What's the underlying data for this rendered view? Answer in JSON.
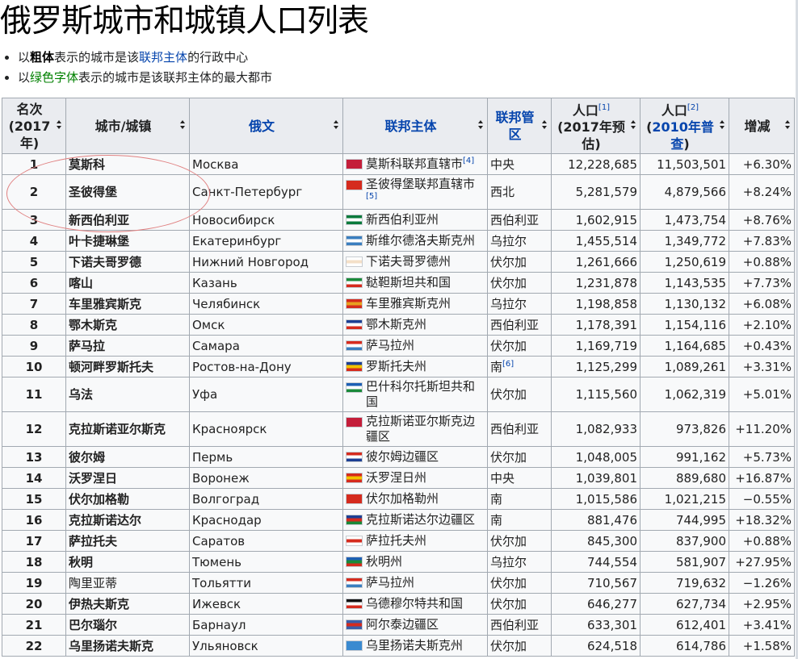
{
  "title": "俄罗斯城市和城镇人口列表",
  "notes": [
    {
      "pre": "以",
      "bold": "粗体",
      "mid": "表示的城市是该",
      "link": "联邦主体",
      "post": "的行政中心"
    },
    {
      "pre": "以",
      "green": "绿色字体",
      "post": "表示的城市是该联邦主体的最大都市"
    }
  ],
  "headers": {
    "rank": "名次\n(2017\n年)",
    "city": "城市/城镇",
    "russian": "俄文",
    "subject": "联邦主体",
    "district": "联邦管\n区",
    "pop2017_main": "人口",
    "pop2017_sup": "[1]",
    "pop2017_sub": "(2017年预\n估)",
    "pop2010_main": "人口",
    "pop2010_sup": "[2]",
    "pop2010_link": "2010年普\n查",
    "change": "增减"
  },
  "rows": [
    {
      "rank": "1",
      "city": "莫斯科",
      "russian": "Москва",
      "subject": "莫斯科联邦直辖市",
      "subject_sup": "[4]",
      "district": "中央",
      "district_link": true,
      "pop2017": "12,228,685",
      "pop2010": "11,503,501",
      "change": "+6.30%",
      "flag": [
        "#c41e3a",
        "#c41e3a",
        "#c41e3a"
      ]
    },
    {
      "rank": "2",
      "city": "圣彼得堡",
      "russian": "Санкт-Петербург",
      "subject": "圣彼得堡联邦直辖市",
      "subject_sup": "[5]",
      "district": "西北",
      "district_link": false,
      "pop2017": "5,281,579",
      "pop2010": "4,879,566",
      "change": "+8.24%",
      "flag": [
        "#d52b1e",
        "#d52b1e",
        "#d52b1e"
      ]
    },
    {
      "rank": "3",
      "city": "新西伯利亚",
      "russian": "Новосибирск",
      "subject": "新西伯利亚州",
      "subject_sup": "",
      "district": "西伯利亚",
      "district_link": true,
      "pop2017": "1,602,915",
      "pop2010": "1,473,754",
      "change": "+8.76%",
      "flag": [
        "#0a7a3c",
        "#ffffff",
        "#0a7a3c"
      ]
    },
    {
      "rank": "4",
      "city": "叶卡捷琳堡",
      "russian": "Екатеринбург",
      "subject": "斯维尔德洛夫斯克州",
      "subject_sup": "",
      "district": "乌拉尔",
      "district_link": true,
      "pop2017": "1,455,514",
      "pop2010": "1,349,772",
      "change": "+7.83%",
      "flag": [
        "#3a7ebf",
        "#ffffff",
        "#3a7ebf"
      ]
    },
    {
      "rank": "5",
      "city": "下诺夫哥罗德",
      "russian": "Нижний Новгород",
      "subject": "下诺夫哥罗德州",
      "subject_sup": "",
      "district": "伏尔加",
      "district_link": true,
      "pop2017": "1,261,666",
      "pop2010": "1,250,619",
      "change": "+0.88%",
      "flag": [
        "#ffffff",
        "#f4e0c8",
        "#ffffff"
      ]
    },
    {
      "rank": "6",
      "city": "喀山",
      "russian": "Казань",
      "subject": "鞑靼斯坦共和国",
      "subject_sup": "",
      "district": "伏尔加",
      "district_link": false,
      "pop2017": "1,231,878",
      "pop2010": "1,143,535",
      "change": "+7.73%",
      "flag": [
        "#1a8a3a",
        "#ffffff",
        "#d52b1e"
      ]
    },
    {
      "rank": "7",
      "city": "车里雅宾斯克",
      "russian": "Челябинск",
      "subject": "车里雅宾斯克州",
      "subject_sup": "",
      "district": "乌拉尔",
      "district_link": false,
      "pop2017": "1,198,858",
      "pop2010": "1,130,132",
      "change": "+6.08%",
      "flag": [
        "#d52b1e",
        "#e8a020",
        "#d52b1e"
      ]
    },
    {
      "rank": "8",
      "city": "鄂木斯克",
      "russian": "Омск",
      "subject": "鄂木斯克州",
      "subject_sup": "",
      "district": "西伯利亚",
      "district_link": false,
      "pop2017": "1,178,391",
      "pop2010": "1,154,116",
      "change": "+2.10%",
      "flag": [
        "#1c3f94",
        "#ffffff",
        "#d52b1e"
      ]
    },
    {
      "rank": "9",
      "city": "萨马拉",
      "russian": "Самара",
      "subject": "萨马拉州",
      "subject_sup": "",
      "district": "伏尔加",
      "district_link": false,
      "pop2017": "1,169,719",
      "pop2010": "1,164,685",
      "change": "+0.43%",
      "flag": [
        "#d52b1e",
        "#ffffff",
        "#3a7ebf"
      ]
    },
    {
      "rank": "10",
      "city": "顿河畔罗斯托夫",
      "russian": "Ростов-на-Дону",
      "subject": "罗斯托夫州",
      "subject_sup": "",
      "district": "南",
      "district_sup": "[6]",
      "district_link": true,
      "pop2017": "1,125,299",
      "pop2010": "1,089,261",
      "change": "+3.31%",
      "flag": [
        "#1c3f94",
        "#f2c200",
        "#d52b1e"
      ]
    },
    {
      "rank": "11",
      "city": "乌法",
      "russian": "Уфа",
      "subject": "巴什科尔托斯坦共和国",
      "subject_sup": "",
      "district": "伏尔加",
      "district_link": false,
      "pop2017": "1,115,560",
      "pop2010": "1,062,319",
      "change": "+5.01%",
      "flag": [
        "#1c5fb4",
        "#ffffff",
        "#1a8a3a"
      ]
    },
    {
      "rank": "12",
      "city": "克拉斯诺亚尔斯克",
      "russian": "Красноярск",
      "subject": "克拉斯诺亚尔斯克边疆区",
      "subject_sup": "",
      "district": "西伯利亚",
      "district_link": false,
      "pop2017": "1,082,933",
      "pop2010": "973,826",
      "change": "+11.20%",
      "flag": [
        "#c41e3a",
        "#c41e3a",
        "#c41e3a"
      ]
    },
    {
      "rank": "13",
      "city": "彼尔姆",
      "russian": "Пермь",
      "subject": "彼尔姆边疆区",
      "subject_sup": "",
      "district": "伏尔加",
      "district_link": false,
      "pop2017": "1,048,005",
      "pop2010": "991,162",
      "change": "+5.73%",
      "flag": [
        "#d52b1e",
        "#ffffff",
        "#1c3f94"
      ]
    },
    {
      "rank": "14",
      "city": "沃罗涅日",
      "russian": "Воронеж",
      "subject": "沃罗涅日州",
      "subject_sup": "",
      "district": "中央",
      "district_link": false,
      "pop2017": "1,039,801",
      "pop2010": "889,680",
      "change": "+16.87%",
      "flag": [
        "#d52b1e",
        "#f2c200",
        "#d52b1e"
      ]
    },
    {
      "rank": "15",
      "city": "伏尔加格勒",
      "russian": "Волгоград",
      "subject": "伏尔加格勒州",
      "subject_sup": "",
      "district": "南",
      "district_link": false,
      "pop2017": "1,015,586",
      "pop2010": "1,021,215",
      "change": "−0.55%",
      "flag": [
        "#d52b1e",
        "#d52b1e",
        "#d52b1e"
      ]
    },
    {
      "rank": "16",
      "city": "克拉斯诺达尔",
      "russian": "Краснодар",
      "subject": "克拉斯诺达尔边疆区",
      "subject_sup": "",
      "district": "南",
      "district_link": false,
      "pop2017": "881,476",
      "pop2010": "744,995",
      "change": "+18.32%",
      "flag": [
        "#1c3f94",
        "#d52b1e",
        "#1a8a3a"
      ]
    },
    {
      "rank": "17",
      "city": "萨拉托夫",
      "russian": "Саратов",
      "subject": "萨拉托夫州",
      "subject_sup": "",
      "district": "伏尔加",
      "district_link": false,
      "pop2017": "845,300",
      "pop2010": "837,900",
      "change": "+0.88%",
      "flag": [
        "#ffffff",
        "#d52b1e",
        "#ffffff"
      ]
    },
    {
      "rank": "18",
      "city": "秋明",
      "russian": "Тюмень",
      "subject": "秋明州",
      "subject_sup": "",
      "district": "乌拉尔",
      "district_link": false,
      "pop2017": "744,554",
      "pop2010": "581,907",
      "change": "+27.95%",
      "flag": [
        "#1c5fb4",
        "#1a8a3a",
        "#d52b1e"
      ]
    },
    {
      "rank": "19",
      "city": "陶里亚蒂",
      "russian": "Тольятти",
      "subject": "萨马拉州",
      "subject_sup": "",
      "district": "伏尔加",
      "district_link": false,
      "pop2017": "710,567",
      "pop2010": "719,632",
      "change": "−1.26%",
      "flag": [
        "#d52b1e",
        "#ffffff",
        "#3a7ebf"
      ],
      "plain": true
    },
    {
      "rank": "20",
      "city": "伊热夫斯克",
      "russian": "Ижевск",
      "subject": "乌德穆尔特共和国",
      "subject_sup": "",
      "district": "伏尔加",
      "district_link": false,
      "pop2017": "646,277",
      "pop2010": "627,734",
      "change": "+2.95%",
      "flag": [
        "#111111",
        "#ffffff",
        "#d52b1e"
      ]
    },
    {
      "rank": "21",
      "city": "巴尔瑙尔",
      "russian": "Барнаул",
      "subject": "阿尔泰边疆区",
      "subject_sup": "",
      "district": "西伯利亚",
      "district_link": false,
      "pop2017": "633,301",
      "pop2010": "612,401",
      "change": "+3.41%",
      "flag": [
        "#3a5ea8",
        "#d52b1e",
        "#3a5ea8"
      ]
    },
    {
      "rank": "22",
      "city": "乌里扬诺夫斯克",
      "russian": "Ульяновск",
      "subject": "乌里扬诺夫斯克州",
      "subject_sup": "",
      "district": "伏尔加",
      "district_link": false,
      "pop2017": "624,518",
      "pop2010": "614,786",
      "change": "+1.58%",
      "flag": [
        "#3a8ad0",
        "#3a8ad0",
        "#3a8ad0"
      ]
    }
  ]
}
